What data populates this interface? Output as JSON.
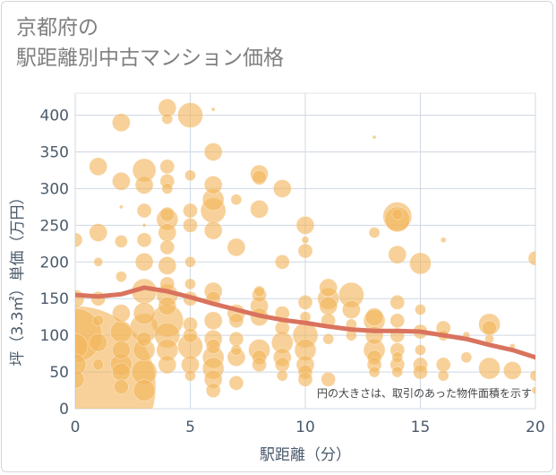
{
  "chart_data": {
    "type": "scatter",
    "title_lines": [
      "京都府の",
      "駅距離別中古マンション価格"
    ],
    "xlabel": "駅距離（分）",
    "ylabel": "坪（3.3㎡）単価（万円）",
    "xlim": [
      0,
      20
    ],
    "ylim": [
      0,
      430
    ],
    "xticks": [
      0,
      5,
      10,
      15,
      20
    ],
    "yticks": [
      0,
      50,
      100,
      150,
      200,
      250,
      300,
      350,
      400
    ],
    "grid": true,
    "annotation": "円の大きさは、取引のあった物件面積を示す",
    "bubble_color": "#f2b45a",
    "trend_color": "#d9735e",
    "trend_line": {
      "x": [
        0,
        1,
        2,
        3,
        4,
        5,
        6,
        7,
        8,
        9,
        10,
        11,
        12,
        13,
        14,
        15,
        16,
        17,
        18,
        19,
        20
      ],
      "y": [
        155,
        153,
        156,
        165,
        160,
        152,
        143,
        135,
        127,
        121,
        117,
        112,
        108,
        106,
        106,
        105,
        100,
        95,
        87,
        80,
        70
      ]
    },
    "points": [
      [
        0,
        30,
        90
      ],
      [
        0,
        100,
        30
      ],
      [
        0,
        230,
        8
      ],
      [
        0,
        150,
        10
      ],
      [
        0,
        60,
        12
      ],
      [
        0,
        85,
        14
      ],
      [
        0,
        40,
        10
      ],
      [
        1,
        330,
        10
      ],
      [
        1,
        240,
        10
      ],
      [
        1,
        90,
        10
      ],
      [
        1,
        150,
        8
      ],
      [
        1,
        60,
        6
      ],
      [
        1,
        120,
        6
      ],
      [
        1,
        200,
        5
      ],
      [
        2,
        390,
        10
      ],
      [
        2,
        310,
        10
      ],
      [
        2,
        228,
        7
      ],
      [
        2,
        180,
        6
      ],
      [
        2,
        130,
        10
      ],
      [
        2,
        105,
        12
      ],
      [
        2,
        80,
        10
      ],
      [
        2,
        60,
        12
      ],
      [
        2,
        50,
        10
      ],
      [
        2,
        30,
        8
      ],
      [
        2,
        275,
        2
      ],
      [
        3,
        325,
        13
      ],
      [
        3,
        305,
        10
      ],
      [
        3,
        270,
        8
      ],
      [
        3,
        230,
        8
      ],
      [
        3,
        250,
        2
      ],
      [
        3,
        200,
        10
      ],
      [
        3,
        160,
        14
      ],
      [
        3,
        130,
        12
      ],
      [
        3,
        110,
        16
      ],
      [
        3,
        80,
        12
      ],
      [
        3,
        50,
        14
      ],
      [
        3,
        25,
        12
      ],
      [
        3,
        95,
        8
      ],
      [
        4,
        410,
        10
      ],
      [
        4,
        395,
        6
      ],
      [
        4,
        330,
        8
      ],
      [
        4,
        310,
        8
      ],
      [
        4,
        300,
        6
      ],
      [
        4,
        265,
        8
      ],
      [
        4,
        258,
        12
      ],
      [
        4,
        240,
        10
      ],
      [
        4,
        220,
        8
      ],
      [
        4,
        195,
        10
      ],
      [
        4,
        170,
        8
      ],
      [
        4,
        155,
        12
      ],
      [
        4,
        140,
        10
      ],
      [
        4,
        120,
        18
      ],
      [
        4,
        100,
        14
      ],
      [
        4,
        80,
        12
      ],
      [
        4,
        60,
        10
      ],
      [
        5,
        400,
        14
      ],
      [
        5,
        318,
        6
      ],
      [
        5,
        270,
        8
      ],
      [
        5,
        250,
        8
      ],
      [
        5,
        200,
        6
      ],
      [
        5,
        170,
        6
      ],
      [
        5,
        150,
        8
      ],
      [
        5,
        115,
        8
      ],
      [
        5,
        100,
        8
      ],
      [
        5,
        85,
        14
      ],
      [
        5,
        60,
        10
      ],
      [
        5,
        45,
        6
      ],
      [
        6,
        408,
        2
      ],
      [
        6,
        350,
        10
      ],
      [
        6,
        305,
        10
      ],
      [
        6,
        285,
        12
      ],
      [
        6,
        270,
        14
      ],
      [
        6,
        243,
        10
      ],
      [
        6,
        160,
        10
      ],
      [
        6,
        150,
        8
      ],
      [
        6,
        120,
        10
      ],
      [
        6,
        95,
        10
      ],
      [
        6,
        85,
        8
      ],
      [
        6,
        70,
        12
      ],
      [
        6,
        55,
        12
      ],
      [
        6,
        40,
        10
      ],
      [
        6,
        25,
        8
      ],
      [
        7,
        285,
        6
      ],
      [
        7,
        220,
        10
      ],
      [
        7,
        130,
        10
      ],
      [
        7,
        120,
        8
      ],
      [
        7,
        95,
        8
      ],
      [
        7,
        80,
        6
      ],
      [
        7,
        70,
        10
      ],
      [
        7,
        35,
        8
      ],
      [
        8,
        320,
        10
      ],
      [
        8,
        315,
        8
      ],
      [
        8,
        272,
        10
      ],
      [
        8,
        160,
        6
      ],
      [
        8,
        155,
        8
      ],
      [
        8,
        140,
        10
      ],
      [
        8,
        125,
        10
      ],
      [
        8,
        80,
        12
      ],
      [
        8,
        70,
        8
      ],
      [
        8,
        60,
        8
      ],
      [
        9,
        300,
        10
      ],
      [
        9,
        200,
        8
      ],
      [
        9,
        130,
        8
      ],
      [
        9,
        110,
        8
      ],
      [
        9,
        90,
        12
      ],
      [
        9,
        70,
        10
      ],
      [
        9,
        60,
        8
      ],
      [
        9,
        45,
        6
      ],
      [
        10,
        250,
        10
      ],
      [
        10,
        230,
        4
      ],
      [
        10,
        215,
        8
      ],
      [
        10,
        145,
        8
      ],
      [
        10,
        125,
        6
      ],
      [
        10,
        100,
        14
      ],
      [
        10,
        80,
        12
      ],
      [
        10,
        60,
        10
      ],
      [
        10,
        50,
        8
      ],
      [
        10,
        40,
        8
      ],
      [
        11,
        165,
        10
      ],
      [
        11,
        150,
        12
      ],
      [
        11,
        140,
        10
      ],
      [
        11,
        120,
        8
      ],
      [
        11,
        95,
        6
      ],
      [
        11,
        40,
        8
      ],
      [
        12,
        155,
        14
      ],
      [
        12,
        135,
        10
      ],
      [
        12,
        115,
        6
      ],
      [
        12,
        100,
        6
      ],
      [
        13,
        370,
        2
      ],
      [
        13,
        240,
        6
      ],
      [
        13,
        125,
        10
      ],
      [
        13,
        120,
        12
      ],
      [
        13,
        100,
        10
      ],
      [
        13,
        80,
        12
      ],
      [
        13,
        70,
        8
      ],
      [
        13,
        60,
        8
      ],
      [
        13,
        50,
        6
      ],
      [
        14,
        262,
        16
      ],
      [
        14,
        258,
        14
      ],
      [
        14,
        265,
        6
      ],
      [
        14,
        210,
        10
      ],
      [
        14,
        145,
        8
      ],
      [
        14,
        120,
        8
      ],
      [
        14,
        100,
        8
      ],
      [
        14,
        80,
        8
      ],
      [
        14,
        70,
        6
      ],
      [
        14,
        60,
        8
      ],
      [
        14,
        50,
        6
      ],
      [
        15,
        198,
        12
      ],
      [
        15,
        135,
        6
      ],
      [
        15,
        105,
        8
      ],
      [
        15,
        80,
        6
      ],
      [
        15,
        60,
        8
      ],
      [
        15,
        50,
        8
      ],
      [
        16,
        230,
        3
      ],
      [
        16,
        110,
        8
      ],
      [
        16,
        100,
        6
      ],
      [
        16,
        60,
        8
      ],
      [
        16,
        45,
        6
      ],
      [
        17,
        100,
        4
      ],
      [
        17,
        70,
        6
      ],
      [
        18,
        115,
        12
      ],
      [
        18,
        110,
        8
      ],
      [
        18,
        55,
        12
      ],
      [
        18,
        95,
        5
      ],
      [
        19,
        85,
        3
      ],
      [
        19,
        52,
        10
      ],
      [
        20,
        205,
        8
      ],
      [
        20,
        45,
        6
      ],
      [
        20,
        25,
        4
      ]
    ]
  }
}
